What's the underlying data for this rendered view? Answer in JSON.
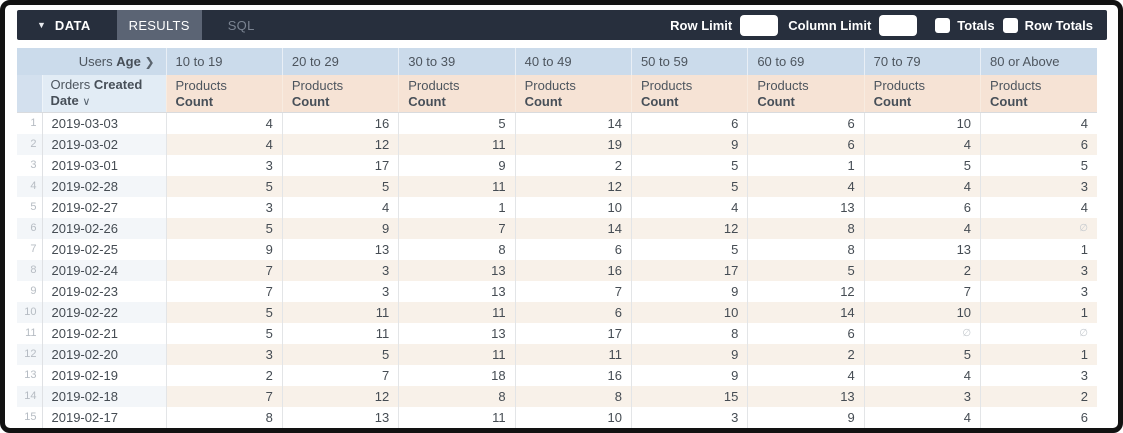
{
  "toolbar": {
    "collapse_caret_icon": "▼",
    "data_label": "DATA",
    "results_tab": "RESULTS",
    "sql_tab": "SQL",
    "row_limit_label": "Row Limit",
    "row_limit_value": "",
    "column_limit_label": "Column Limit",
    "column_limit_value": "",
    "totals_label": "Totals",
    "totals_checked": false,
    "row_totals_label": "Row Totals",
    "row_totals_checked": false
  },
  "table": {
    "pivot_field": {
      "prefix": "Users",
      "name": "Age"
    },
    "pivot_chevron_icon": "❯",
    "age_buckets": [
      "10 to 19",
      "20 to 29",
      "30 to 39",
      "40 to 49",
      "50 to 59",
      "60 to 69",
      "70 to 79",
      "80 or Above"
    ],
    "row_field": {
      "prefix": "Orders",
      "name": "Created Date"
    },
    "sort_chevron_icon": "∨",
    "measure": {
      "view": "Products",
      "field": "Count"
    },
    "null_symbol": "∅",
    "rows": [
      {
        "n": 1,
        "date": "2019-03-03",
        "values": [
          4,
          16,
          5,
          14,
          6,
          6,
          10,
          4
        ]
      },
      {
        "n": 2,
        "date": "2019-03-02",
        "values": [
          4,
          12,
          11,
          19,
          9,
          6,
          4,
          6
        ]
      },
      {
        "n": 3,
        "date": "2019-03-01",
        "values": [
          3,
          17,
          9,
          2,
          5,
          1,
          5,
          5
        ]
      },
      {
        "n": 4,
        "date": "2019-02-28",
        "values": [
          5,
          5,
          11,
          12,
          5,
          4,
          4,
          3
        ]
      },
      {
        "n": 5,
        "date": "2019-02-27",
        "values": [
          3,
          4,
          1,
          10,
          4,
          13,
          6,
          4
        ]
      },
      {
        "n": 6,
        "date": "2019-02-26",
        "values": [
          5,
          9,
          7,
          14,
          12,
          8,
          4,
          null
        ]
      },
      {
        "n": 7,
        "date": "2019-02-25",
        "values": [
          9,
          13,
          8,
          6,
          5,
          8,
          13,
          1
        ]
      },
      {
        "n": 8,
        "date": "2019-02-24",
        "values": [
          7,
          3,
          13,
          16,
          17,
          5,
          2,
          3
        ]
      },
      {
        "n": 9,
        "date": "2019-02-23",
        "values": [
          7,
          3,
          13,
          7,
          9,
          12,
          7,
          3
        ]
      },
      {
        "n": 10,
        "date": "2019-02-22",
        "values": [
          5,
          11,
          11,
          6,
          10,
          14,
          10,
          1
        ]
      },
      {
        "n": 11,
        "date": "2019-02-21",
        "values": [
          5,
          11,
          13,
          17,
          8,
          6,
          null,
          null
        ]
      },
      {
        "n": 12,
        "date": "2019-02-20",
        "values": [
          3,
          5,
          11,
          11,
          9,
          2,
          5,
          1
        ]
      },
      {
        "n": 13,
        "date": "2019-02-19",
        "values": [
          2,
          7,
          18,
          16,
          9,
          4,
          4,
          3
        ]
      },
      {
        "n": 14,
        "date": "2019-02-18",
        "values": [
          7,
          12,
          8,
          8,
          15,
          13,
          3,
          2
        ]
      },
      {
        "n": 15,
        "date": "2019-02-17",
        "values": [
          8,
          13,
          11,
          10,
          3,
          9,
          4,
          6
        ]
      }
    ]
  },
  "colors": {
    "topbar_bg": "#272f3d",
    "results_tab_bg": "#5b6474",
    "header_blue": "#cbdbeb",
    "header_blue_light": "#e2ecf5",
    "header_peach": "#f6e3d5",
    "stripe_blue": "#f3f6f9",
    "stripe_peach": "#f8f1e9"
  }
}
